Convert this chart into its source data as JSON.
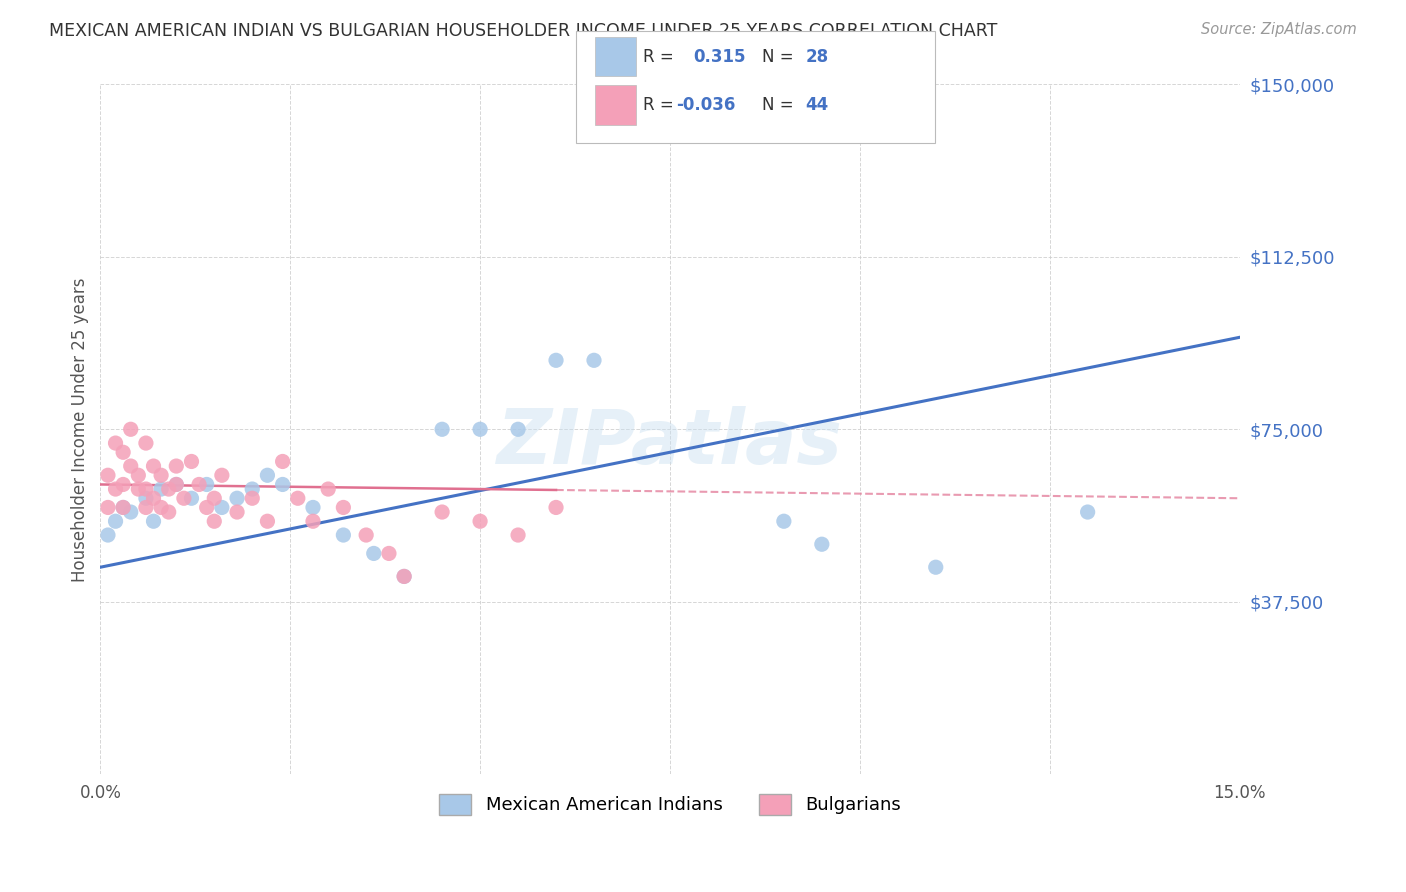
{
  "title": "MEXICAN AMERICAN INDIAN VS BULGARIAN HOUSEHOLDER INCOME UNDER 25 YEARS CORRELATION CHART",
  "source": "Source: ZipAtlas.com",
  "ylabel": "Householder Income Under 25 years",
  "xlim": [
    0.0,
    0.15
  ],
  "ylim": [
    0,
    150000
  ],
  "watermark": "ZIPatlas",
  "blue_color": "#A8C8E8",
  "pink_color": "#F4A0B8",
  "blue_line_color": "#4472C4",
  "pink_line_color": "#E07090",
  "title_color": "#333333",
  "right_label_color": "#4472C4",
  "legend_blue_r": "0.315",
  "legend_blue_n": "28",
  "legend_pink_r": "-0.036",
  "legend_pink_n": "44",
  "mai_x": [
    0.001,
    0.002,
    0.003,
    0.004,
    0.006,
    0.007,
    0.008,
    0.01,
    0.012,
    0.014,
    0.016,
    0.018,
    0.02,
    0.022,
    0.024,
    0.028,
    0.032,
    0.036,
    0.04,
    0.045,
    0.05,
    0.055,
    0.06,
    0.065,
    0.09,
    0.095,
    0.11,
    0.13
  ],
  "mai_y": [
    52000,
    55000,
    58000,
    57000,
    60000,
    55000,
    62000,
    63000,
    60000,
    63000,
    58000,
    60000,
    62000,
    65000,
    63000,
    58000,
    52000,
    48000,
    43000,
    75000,
    75000,
    75000,
    90000,
    90000,
    55000,
    50000,
    45000,
    57000
  ],
  "bul_x": [
    0.001,
    0.001,
    0.002,
    0.002,
    0.003,
    0.003,
    0.003,
    0.004,
    0.004,
    0.005,
    0.005,
    0.006,
    0.006,
    0.006,
    0.007,
    0.007,
    0.008,
    0.008,
    0.009,
    0.009,
    0.01,
    0.01,
    0.011,
    0.012,
    0.013,
    0.014,
    0.015,
    0.015,
    0.016,
    0.018,
    0.02,
    0.022,
    0.024,
    0.026,
    0.028,
    0.03,
    0.032,
    0.035,
    0.038,
    0.04,
    0.045,
    0.05,
    0.055,
    0.06
  ],
  "bul_y": [
    65000,
    58000,
    72000,
    62000,
    70000,
    63000,
    58000,
    75000,
    67000,
    65000,
    62000,
    72000,
    62000,
    58000,
    67000,
    60000,
    65000,
    58000,
    62000,
    57000,
    63000,
    67000,
    60000,
    68000,
    63000,
    58000,
    60000,
    55000,
    65000,
    57000,
    60000,
    55000,
    68000,
    60000,
    55000,
    62000,
    58000,
    52000,
    48000,
    43000,
    57000,
    55000,
    52000,
    58000
  ]
}
